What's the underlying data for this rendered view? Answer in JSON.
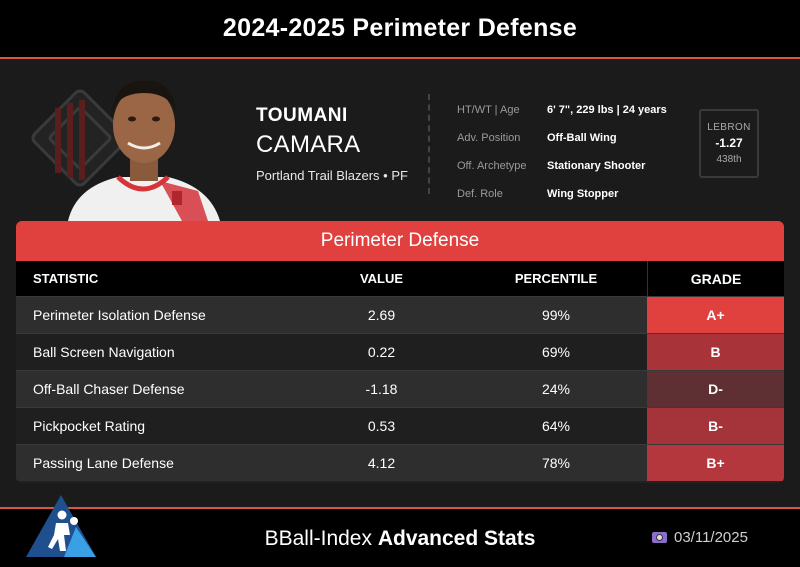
{
  "header": {
    "title": "2024-2025 Perimeter Defense"
  },
  "player": {
    "first_name": "TOUMANI",
    "last_name": "CAMARA",
    "team_line": "Portland Trail Blazers • PF"
  },
  "info": [
    {
      "label": "HT/WT | Age",
      "value": "6' 7\", 229 lbs | 24 years"
    },
    {
      "label": "Adv. Position",
      "value": "Off-Ball Wing"
    },
    {
      "label": "Off. Archetype",
      "value": "Stationary Shooter"
    },
    {
      "label": "Def. Role",
      "value": "Wing Stopper"
    }
  ],
  "lebron": {
    "label": "LEBRON",
    "value": "-1.27",
    "rank": "438th"
  },
  "table": {
    "title": "Perimeter Defense",
    "headers": {
      "stat": "STATISTIC",
      "value": "VALUE",
      "percentile": "PERCENTILE",
      "grade": "GRADE"
    },
    "rows": [
      {
        "stat": "Perimeter Isolation Defense",
        "value": "2.69",
        "percentile": "99%",
        "grade": "A+",
        "grade_color": "#e0413f"
      },
      {
        "stat": "Ball Screen Navigation",
        "value": "0.22",
        "percentile": "69%",
        "grade": "B",
        "grade_color": "#a8343a"
      },
      {
        "stat": "Off-Ball Chaser Defense",
        "value": "-1.18",
        "percentile": "24%",
        "grade": "D-",
        "grade_color": "#5e2f33"
      },
      {
        "stat": "Pickpocket Rating",
        "value": "0.53",
        "percentile": "64%",
        "grade": "B-",
        "grade_color": "#a5333a"
      },
      {
        "stat": "Passing Lane Defense",
        "value": "4.12",
        "percentile": "78%",
        "grade": "B+",
        "grade_color": "#b3373c"
      }
    ]
  },
  "footer": {
    "brand_prefix": "BBall-Index",
    "brand_suffix": "Advanced Stats",
    "date": "03/11/2025"
  },
  "colors": {
    "accent": "#e0413f",
    "header_border": "#e0533f"
  },
  "icons": {
    "team_logo": "trail-blazers-logo",
    "date_icon": "camera-icon",
    "brand_logo": "bball-index-logo"
  }
}
